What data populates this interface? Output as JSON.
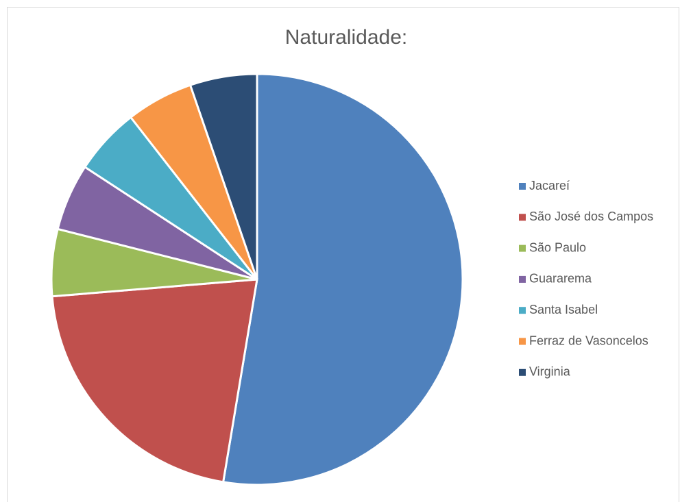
{
  "chart_data": {
    "type": "pie",
    "title": "Naturalidade:",
    "categories": [
      "Jacareí",
      "São José dos Campos",
      "São Paulo",
      "Guararema",
      "Santa Isabel",
      "Ferraz de Vasoncelos",
      "Virginia"
    ],
    "values": [
      10,
      4,
      1,
      1,
      1,
      1,
      1
    ],
    "colors": [
      "#4f81bd",
      "#c0504d",
      "#9bbb59",
      "#8064a2",
      "#4bacc6",
      "#f79646",
      "#2c4d75"
    ],
    "legend": "right"
  }
}
